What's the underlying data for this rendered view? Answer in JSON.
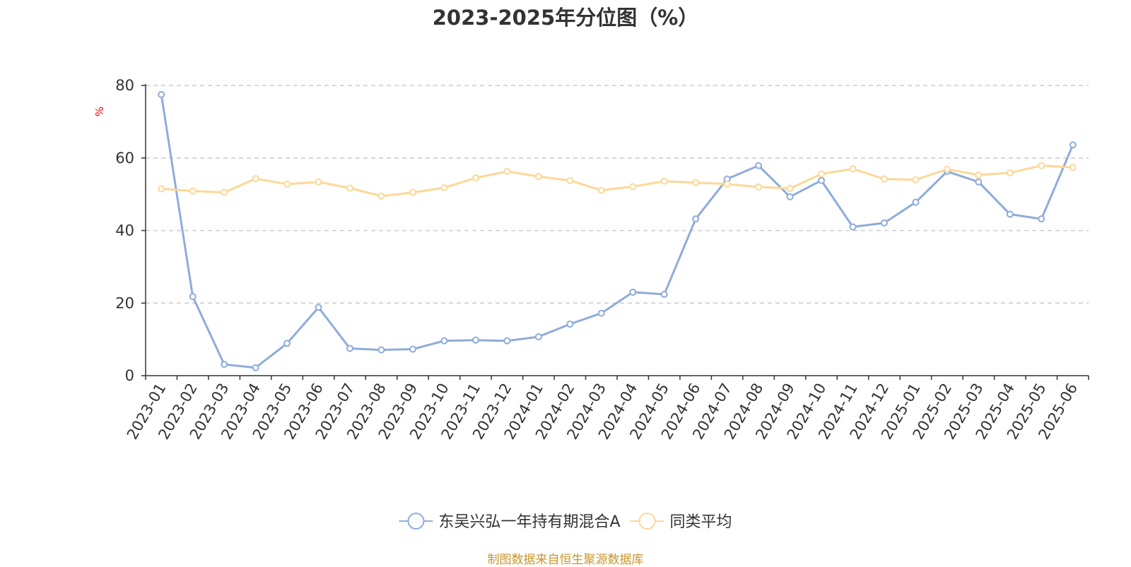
{
  "chart_data": {
    "type": "line",
    "title": "2023-2025年分位图（%）",
    "ylabel": "%",
    "ylim": [
      0,
      80
    ],
    "yticks": [
      0,
      20,
      40,
      60,
      80
    ],
    "grid": true,
    "legend_position": "bottom-center",
    "categories": [
      "2023-01",
      "2023-02",
      "2023-03",
      "2023-04",
      "2023-05",
      "2023-06",
      "2023-07",
      "2023-08",
      "2023-09",
      "2023-10",
      "2023-11",
      "2023-12",
      "2024-01",
      "2024-02",
      "2024-03",
      "2024-04",
      "2024-05",
      "2024-06",
      "2024-07",
      "2024-08",
      "2024-09",
      "2024-10",
      "2024-11",
      "2024-12",
      "2025-01",
      "2025-02",
      "2025-03",
      "2025-04",
      "2025-05",
      "2025-06"
    ],
    "series": [
      {
        "name": "东吴兴弘一年持有期混合A",
        "color": "#8eacda",
        "values": [
          77.5,
          21.8,
          3.1,
          2.2,
          8.9,
          18.8,
          7.5,
          7.1,
          7.3,
          9.6,
          9.8,
          9.6,
          10.7,
          14.2,
          17.2,
          23.0,
          22.4,
          43.2,
          54.2,
          57.9,
          49.3,
          53.8,
          41.0,
          42.1,
          47.8,
          56.3,
          53.4,
          44.5,
          43.2,
          63.6
        ]
      },
      {
        "name": "同类平均",
        "color": "#fcd898",
        "values": [
          51.5,
          50.9,
          50.5,
          54.3,
          52.8,
          53.4,
          51.7,
          49.5,
          50.5,
          51.8,
          54.5,
          56.3,
          54.9,
          53.8,
          51.1,
          52.1,
          53.6,
          53.2,
          52.8,
          52.0,
          51.6,
          55.6,
          57.0,
          54.2,
          54.0,
          56.9,
          55.3,
          55.9,
          57.9,
          57.4
        ]
      }
    ],
    "source_note": "制图数据来自恒生聚源数据库"
  }
}
